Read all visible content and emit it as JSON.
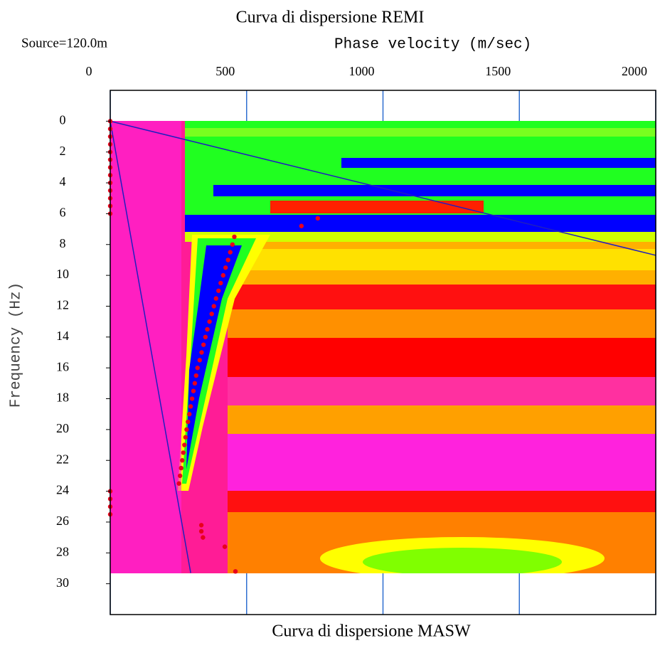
{
  "chart_data": {
    "type": "scatter",
    "title": "Curva di dispersione REMI",
    "subtitle": "Source=120.0m",
    "x_label": "Phase velocity (m/sec)",
    "y_label": "Frequency (Hz)",
    "caption": "Curva di dispersione MASW",
    "xlim": [
      0,
      2000
    ],
    "ylim": [
      -2,
      32
    ],
    "y_inverted": true,
    "xticks": [
      0,
      500,
      1000,
      1500,
      2000
    ],
    "yticks": [
      0,
      2,
      4,
      6,
      8,
      10,
      12,
      14,
      16,
      18,
      20,
      22,
      24,
      26,
      28,
      30
    ],
    "grid_color": "#2f6fd0",
    "series": [
      {
        "color": "#e8001c",
        "x": [
          0,
          0,
          0,
          0,
          0,
          0,
          0,
          0,
          0,
          0,
          0,
          0,
          0,
          0,
          0,
          0,
          0,
          455,
          448,
          440,
          432,
          423,
          414,
          405,
          397,
          388,
          380,
          372,
          364,
          356,
          349,
          342,
          335,
          328,
          320,
          315,
          310,
          305,
          300,
          295,
          290,
          285,
          280,
          276,
          272,
          268,
          264,
          260,
          256,
          252,
          701,
          761,
          334,
          334,
          340,
          420,
          459
        ],
        "values": [
          0,
          0.5,
          1,
          1.5,
          2,
          2.5,
          3,
          3.5,
          4,
          4.5,
          5,
          5.5,
          6,
          24,
          24.5,
          25,
          25.5,
          7.5,
          8,
          8.5,
          9,
          9.5,
          10,
          10.5,
          11,
          11.5,
          12,
          12.5,
          13,
          13.5,
          14,
          14.5,
          15,
          15.5,
          16,
          16.5,
          17,
          17.5,
          18,
          18.5,
          19,
          19.5,
          20,
          20.5,
          21,
          21.5,
          22,
          22.5,
          23,
          23.5,
          6.8,
          6.3,
          26.2,
          26.6,
          27,
          27.6,
          29.2
        ]
      }
    ],
    "lines": [
      {
        "color": "#1f1fbf",
        "x": [
          0,
          2000
        ],
        "values": [
          0,
          8.7
        ]
      },
      {
        "color": "#1f1fbf",
        "x": [
          0,
          295
        ],
        "values": [
          0,
          29.3
        ]
      }
    ]
  }
}
